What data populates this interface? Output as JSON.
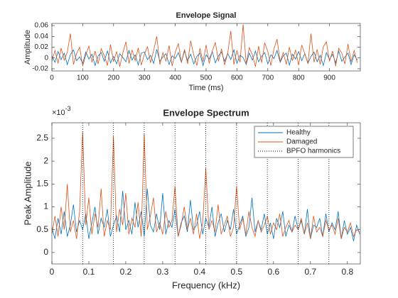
{
  "chart_data": [
    {
      "type": "line",
      "title": "Envelope Signal",
      "xlabel": "Time (ms)",
      "ylabel": "Amplitude",
      "x": [
        0,
        10,
        20,
        30,
        40,
        50,
        60,
        70,
        80,
        90,
        100,
        110,
        120,
        130,
        140,
        150,
        160,
        170,
        180,
        190,
        200,
        210,
        220,
        230,
        240,
        250,
        260,
        270,
        280,
        290,
        300,
        310,
        320,
        330,
        340,
        350,
        360,
        370,
        380,
        390,
        400,
        410,
        420,
        430,
        440,
        450,
        460,
        470,
        480,
        490,
        500,
        510,
        520,
        530,
        540,
        550,
        560,
        570,
        580,
        590,
        600,
        610,
        620,
        630,
        640,
        650,
        660,
        670,
        680,
        690,
        700,
        710,
        720,
        730,
        740,
        750,
        760,
        770,
        780,
        790,
        800,
        810,
        820,
        830,
        840,
        850,
        860,
        870,
        880,
        890,
        900,
        910,
        920,
        930,
        940,
        950,
        960,
        970,
        980,
        990
      ],
      "series": [
        {
          "name": "Healthy",
          "color": "#0072BD",
          "values": [
            0.004,
            -0.008,
            0.012,
            -0.003,
            0.009,
            -0.012,
            0.006,
            0.015,
            -0.005,
            0.002,
            -0.01,
            0.011,
            -0.002,
            0.007,
            -0.014,
            0.004,
            0.01,
            -0.006,
            0.013,
            -0.009,
            0.003,
            -0.011,
            0.008,
            0.001,
            -0.007,
            0.014,
            -0.004,
            0.006,
            -0.013,
            0.009,
            0.011,
            -0.003,
            0.005,
            -0.01,
            0.016,
            -0.006,
            0.002,
            0.008,
            -0.012,
            0.004,
            -0.001,
            0.01,
            -0.008,
            0.013,
            -0.005,
            0.007,
            -0.011,
            0.003,
            0.009,
            -0.014,
            0.006,
            -0.002,
            0.012,
            -0.009,
            0.004,
            0.011,
            -0.006,
            0.008,
            -0.003,
            0.015,
            -0.01,
            0.005,
            0.001,
            -0.012,
            0.009,
            -0.004,
            0.013,
            -0.007,
            0.003,
            0.01,
            -0.011,
            0.006,
            -0.001,
            0.014,
            -0.008,
            0.004,
            0.009,
            -0.013,
            0.007,
            -0.002,
            0.012,
            -0.005,
            0.008,
            -0.01,
            0.003,
            0.011,
            -0.007,
            0.005,
            -0.014,
            0.01,
            -0.003,
            0.007,
            -0.009,
            0.013,
            -0.006,
            0.002,
            0.009,
            -0.012,
            0.006,
            -0.004
          ]
        },
        {
          "name": "Damaged",
          "color": "#D95319",
          "values": [
            -0.006,
            0.014,
            -0.01,
            0.018,
            -0.004,
            0.011,
            0.045,
            -0.012,
            0.008,
            0.02,
            -0.015,
            0.006,
            0.022,
            -0.008,
            0.013,
            -0.011,
            0.017,
            0.004,
            -0.014,
            0.025,
            -0.007,
            0.012,
            -0.016,
            0.009,
            0.03,
            -0.01,
            0.015,
            -0.005,
            0.019,
            -0.013,
            0.007,
            0.021,
            -0.009,
            0.014,
            0.04,
            -0.012,
            0.01,
            -0.006,
            0.023,
            -0.015,
            0.011,
            0.027,
            -0.008,
            0.016,
            -0.011,
            0.032,
            0.005,
            -0.014,
            0.018,
            -0.007,
            0.024,
            -0.01,
            0.013,
            0.029,
            -0.006,
            0.017,
            -0.013,
            0.009,
            0.05,
            -0.012,
            0.014,
            -0.008,
            0.062,
            -0.011,
            0.019,
            0.006,
            -0.016,
            0.022,
            -0.009,
            0.028,
            0.012,
            -0.014,
            0.017,
            0.035,
            -0.007,
            0.01,
            -0.012,
            0.02,
            -0.005,
            0.015,
            -0.013,
            0.024,
            0.008,
            -0.01,
            0.045,
            -0.008,
            0.016,
            -0.012,
            0.021,
            0.03,
            -0.006,
            0.013,
            -0.015,
            0.018,
            0.009,
            -0.011,
            0.026,
            -0.007,
            0.014,
            -0.009
          ]
        }
      ],
      "xlim": [
        0,
        1000
      ],
      "xticks": [
        0,
        100,
        200,
        300,
        400,
        500,
        600,
        700,
        800,
        900
      ],
      "ylim": [
        -0.024,
        0.064
      ],
      "yticks": [
        -0.02,
        0,
        0.02,
        0.04,
        0.06
      ]
    },
    {
      "type": "line",
      "title": "Envelope Spectrum",
      "xlabel": "Frequency (kHz)",
      "ylabel": "Peak Amplitude",
      "exponent_label": {
        "base": "×10",
        "power": "-3"
      },
      "x": [
        0,
        0.0083,
        0.0167,
        0.025,
        0.0333,
        0.0417,
        0.05,
        0.0583,
        0.0667,
        0.075,
        0.0833,
        0.0917,
        0.1,
        0.1083,
        0.1167,
        0.125,
        0.1333,
        0.1417,
        0.15,
        0.1583,
        0.1667,
        0.175,
        0.1833,
        0.1917,
        0.2,
        0.2083,
        0.2167,
        0.225,
        0.2333,
        0.2417,
        0.25,
        0.2583,
        0.2667,
        0.275,
        0.2833,
        0.2917,
        0.3,
        0.3083,
        0.3167,
        0.325,
        0.3333,
        0.3417,
        0.35,
        0.3583,
        0.3667,
        0.375,
        0.3833,
        0.3917,
        0.4,
        0.4083,
        0.4167,
        0.425,
        0.4333,
        0.4417,
        0.45,
        0.4583,
        0.4667,
        0.475,
        0.4833,
        0.4917,
        0.5,
        0.5083,
        0.5167,
        0.525,
        0.5333,
        0.5417,
        0.55,
        0.5583,
        0.5667,
        0.575,
        0.5833,
        0.5917,
        0.6,
        0.6083,
        0.6167,
        0.625,
        0.6333,
        0.6417,
        0.65,
        0.6583,
        0.6667,
        0.675,
        0.6833,
        0.6917,
        0.7,
        0.7083,
        0.7167,
        0.725,
        0.7333,
        0.7417,
        0.75,
        0.7583,
        0.7667,
        0.775,
        0.7833,
        0.7917,
        0.8,
        0.8083,
        0.8167,
        0.825,
        0.8333
      ],
      "series": [
        {
          "name": "Healthy",
          "color": "#0072BD",
          "values": [
            0.55,
            0.3,
            0.75,
            0.4,
            0.9,
            0.35,
            0.6,
            1.05,
            0.45,
            0.7,
            0.5,
            0.85,
            0.3,
            0.65,
            1.0,
            0.4,
            0.75,
            0.55,
            0.95,
            0.35,
            0.6,
            0.8,
            0.45,
            1.35,
            0.5,
            0.7,
            0.4,
            1.1,
            0.55,
            0.9,
            0.35,
            1.4,
            0.6,
            0.45,
            0.85,
            0.5,
            1.3,
            0.4,
            0.7,
            0.55,
            0.95,
            0.35,
            0.65,
            0.8,
            0.45,
            1.15,
            0.5,
            0.6,
            0.9,
            0.4,
            0.75,
            0.55,
            1.0,
            0.35,
            0.65,
            0.85,
            0.45,
            0.7,
            0.5,
            0.95,
            0.4,
            0.6,
            0.8,
            0.35,
            0.55,
            1.2,
            0.45,
            0.7,
            0.5,
            0.85,
            0.4,
            0.65,
            0.3,
            0.75,
            0.55,
            0.9,
            0.35,
            0.6,
            0.45,
            0.8,
            0.5,
            0.7,
            0.4,
            0.95,
            0.3,
            0.6,
            0.55,
            0.75,
            0.35,
            0.85,
            0.45,
            0.65,
            0.5,
            0.9,
            0.3,
            0.7,
            0.4,
            0.55,
            0.25,
            0.6,
            0.4
          ]
        },
        {
          "name": "Damaged",
          "color": "#D95319",
          "values": [
            0.4,
            0.8,
            0.35,
            1.0,
            0.5,
            1.5,
            0.45,
            0.7,
            0.3,
            0.9,
            2.65,
            0.6,
            1.2,
            0.4,
            0.85,
            0.55,
            1.4,
            0.35,
            0.7,
            0.5,
            2.55,
            0.45,
            0.95,
            0.6,
            1.3,
            0.4,
            0.75,
            0.55,
            1.1,
            0.35,
            2.6,
            0.5,
            0.8,
            1.2,
            0.45,
            0.65,
            0.4,
            0.9,
            0.55,
            0.7,
            1.45,
            0.35,
            0.6,
            1.0,
            0.5,
            0.75,
            0.4,
            0.85,
            0.3,
            0.65,
            1.85,
            0.5,
            0.7,
            0.45,
            1.05,
            0.4,
            0.6,
            0.8,
            0.35,
            0.55,
            1.45,
            0.5,
            0.75,
            0.4,
            0.9,
            0.55,
            0.35,
            0.7,
            0.45,
            0.6,
            0.8,
            0.4,
            0.65,
            0.5,
            0.85,
            0.35,
            0.55,
            0.7,
            0.45,
            0.6,
            0.5,
            0.75,
            0.4,
            0.65,
            0.3,
            0.8,
            0.45,
            0.55,
            0.35,
            0.7,
            0.5,
            0.6,
            0.4,
            0.75,
            0.3,
            0.55,
            0.45,
            0.65,
            0.35,
            0.5,
            0.45
          ]
        }
      ],
      "vlines": {
        "name": "BPFO harmonics",
        "color": "#000000",
        "x": [
          0.0833,
          0.1667,
          0.25,
          0.3333,
          0.4167,
          0.5,
          0.5833,
          0.6667,
          0.75
        ]
      },
      "legend": "upper right",
      "xlim": [
        0,
        0.835
      ],
      "xticks": [
        0,
        0.1,
        0.2,
        0.3,
        0.4,
        0.5,
        0.6,
        0.7,
        0.8
      ],
      "ylim": [
        -0.25,
        2.84
      ],
      "yticks": [
        0,
        0.5,
        1,
        1.5,
        2,
        2.5
      ]
    }
  ]
}
